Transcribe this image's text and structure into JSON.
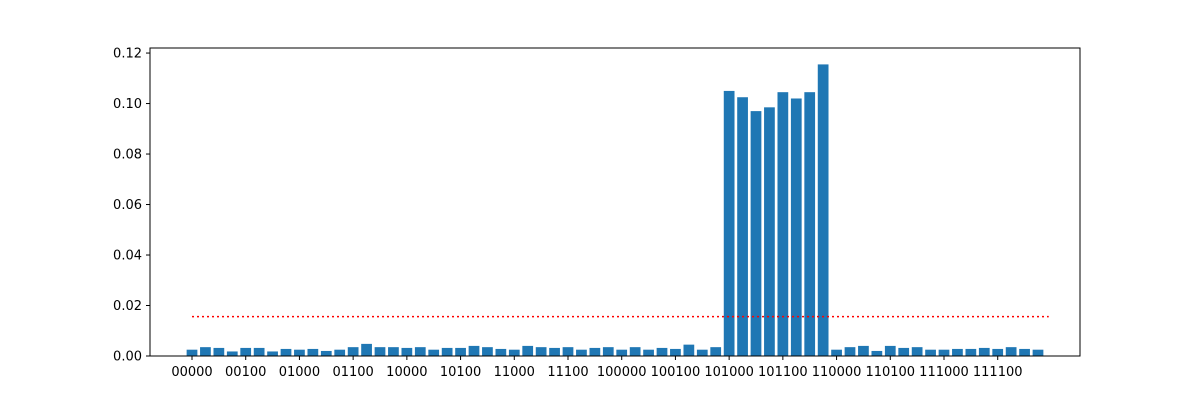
{
  "chart_data": {
    "type": "bar",
    "title": "",
    "xlabel": "",
    "ylabel": "",
    "ylim": [
      0,
      0.122
    ],
    "yticks": [
      0.0,
      0.02,
      0.04,
      0.06,
      0.08,
      0.1,
      0.12
    ],
    "ytick_labels": [
      "0.00",
      "0.02",
      "0.04",
      "0.06",
      "0.08",
      "0.10",
      "0.12"
    ],
    "xtick_labels": [
      "00000",
      "00100",
      "01000",
      "01100",
      "10000",
      "10100",
      "11000",
      "11100",
      "100000",
      "100100",
      "101000",
      "101100",
      "110000",
      "110100",
      "111000",
      "111100"
    ],
    "xtick_every": 4,
    "bar_color": "#1f77b4",
    "values": [
      0.0025,
      0.0035,
      0.0032,
      0.0018,
      0.0032,
      0.0032,
      0.0018,
      0.0028,
      0.0025,
      0.0028,
      0.002,
      0.0025,
      0.0035,
      0.0048,
      0.0035,
      0.0035,
      0.0032,
      0.0035,
      0.0025,
      0.0032,
      0.0032,
      0.004,
      0.0035,
      0.0028,
      0.0025,
      0.004,
      0.0035,
      0.0032,
      0.0035,
      0.0025,
      0.0032,
      0.0035,
      0.0025,
      0.0035,
      0.0025,
      0.0032,
      0.0028,
      0.0045,
      0.0025,
      0.0035,
      0.105,
      0.1025,
      0.097,
      0.0985,
      0.1045,
      0.102,
      0.1045,
      0.1155,
      0.0025,
      0.0035,
      0.004,
      0.002,
      0.004,
      0.0032,
      0.0035,
      0.0025,
      0.0025,
      0.0028,
      0.0028,
      0.0032,
      0.0028,
      0.0035,
      0.0028,
      0.0025
    ],
    "reference_line": {
      "value": 0.0156,
      "color": "#ff0000",
      "style": "dotted"
    },
    "grid": false
  }
}
